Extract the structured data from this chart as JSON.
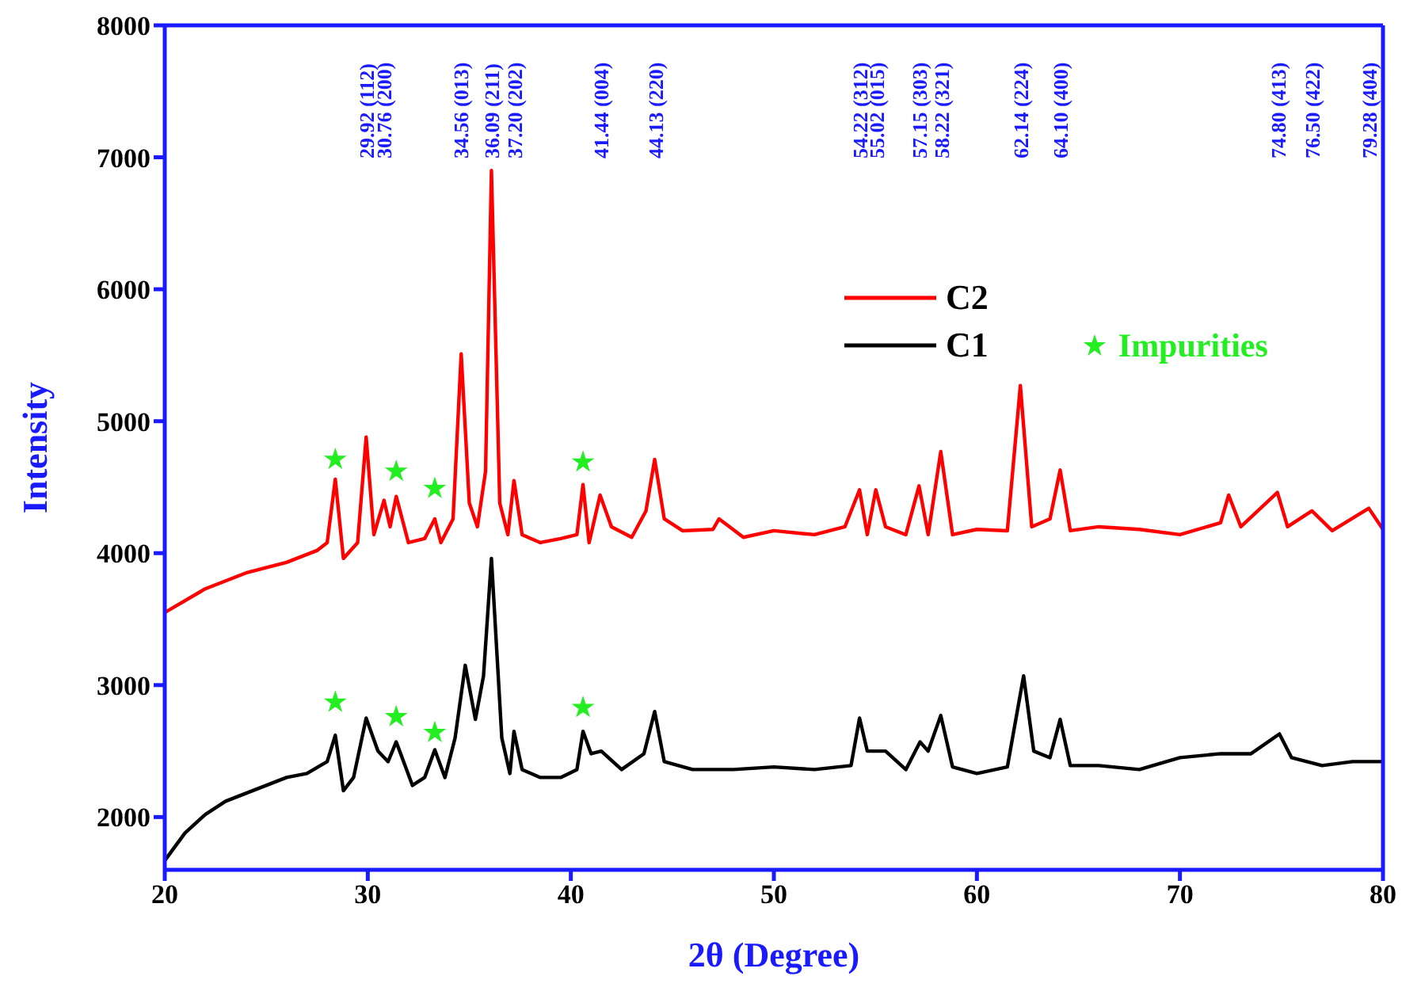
{
  "chart_data": {
    "type": "line",
    "xlabel": "2θ (Degree)",
    "ylabel": "Intensity",
    "xlim": [
      20,
      80
    ],
    "xticks": [
      20,
      30,
      40,
      50,
      60,
      70,
      80
    ],
    "ylim": [
      1600,
      8000
    ],
    "yticks": [
      2000,
      3000,
      4000,
      5000,
      6000,
      7000,
      8000
    ],
    "grid": false,
    "legend": "top right",
    "marker": "none",
    "line_style": "solid",
    "series": [
      {
        "name": "C2",
        "color": "#ff0000",
        "x": [
          20,
          22,
          24,
          26,
          27.5,
          28,
          28.4,
          28.8,
          29.5,
          29.92,
          30.3,
          30.8,
          31.1,
          31.4,
          32,
          32.8,
          33.3,
          33.6,
          34.2,
          34.6,
          35,
          35.4,
          35.8,
          36.09,
          36.5,
          36.9,
          37.2,
          37.6,
          38.5,
          39.5,
          40.3,
          40.6,
          40.9,
          41.44,
          42,
          43,
          43.7,
          44.13,
          44.6,
          45.5,
          47,
          47.3,
          48.5,
          50,
          52,
          53.5,
          54.22,
          54.6,
          55.02,
          55.5,
          56.5,
          57.15,
          57.6,
          58.22,
          58.8,
          60,
          61.5,
          62.14,
          62.7,
          63.6,
          64.1,
          64.6,
          66,
          68,
          70,
          72,
          72.4,
          73,
          74.8,
          75.3,
          76.5,
          77.5,
          79.3,
          80
        ],
        "values": [
          3550,
          3730,
          3850,
          3930,
          4020,
          4080,
          4560,
          3960,
          4080,
          4880,
          4140,
          4400,
          4200,
          4430,
          4080,
          4110,
          4260,
          4080,
          4260,
          5510,
          4380,
          4200,
          4620,
          6900,
          4380,
          4140,
          4550,
          4140,
          4080,
          4110,
          4140,
          4520,
          4080,
          4440,
          4200,
          4120,
          4320,
          4710,
          4260,
          4170,
          4180,
          4260,
          4120,
          4170,
          4140,
          4200,
          4480,
          4140,
          4480,
          4200,
          4140,
          4510,
          4140,
          4770,
          4140,
          4180,
          4170,
          5270,
          4200,
          4260,
          4630,
          4170,
          4200,
          4180,
          4140,
          4230,
          4440,
          4200,
          4460,
          4200,
          4320,
          4170,
          4340,
          4180
        ]
      },
      {
        "name": "C1",
        "color": "#000000",
        "x": [
          20,
          21,
          22,
          23,
          24,
          25,
          26,
          27,
          28,
          28.4,
          28.8,
          29.3,
          29.92,
          30.5,
          31,
          31.4,
          32.2,
          32.8,
          33.3,
          33.8,
          34.3,
          34.8,
          35.3,
          35.7,
          36.09,
          36.6,
          37,
          37.2,
          37.6,
          38.5,
          39.5,
          40.3,
          40.6,
          41,
          41.5,
          42.5,
          43.6,
          44.13,
          44.6,
          46,
          48,
          50,
          52,
          53.8,
          54.22,
          54.6,
          55.5,
          56.5,
          57.2,
          57.6,
          58.22,
          58.8,
          60,
          61.5,
          62.3,
          62.8,
          63.6,
          64.1,
          64.6,
          66,
          68,
          70,
          72,
          73.5,
          74.9,
          75.5,
          77,
          78.5,
          80
        ],
        "values": [
          1670,
          1880,
          2020,
          2120,
          2180,
          2240,
          2300,
          2330,
          2420,
          2620,
          2200,
          2300,
          2750,
          2500,
          2420,
          2570,
          2240,
          2300,
          2510,
          2300,
          2600,
          3150,
          2740,
          3070,
          3960,
          2600,
          2330,
          2650,
          2360,
          2300,
          2300,
          2360,
          2650,
          2480,
          2500,
          2360,
          2480,
          2800,
          2420,
          2360,
          2360,
          2380,
          2360,
          2390,
          2750,
          2500,
          2500,
          2360,
          2570,
          2500,
          2770,
          2380,
          2330,
          2380,
          3070,
          2500,
          2450,
          2740,
          2390,
          2390,
          2360,
          2450,
          2480,
          2480,
          2630,
          2450,
          2390,
          2420,
          2420
        ]
      },
      {
        "name": "Impurities",
        "type": "scatter",
        "marker": "star",
        "color": "#22ee22",
        "x": [
          28.4,
          31.4,
          33.3,
          40.6,
          28.4,
          31.4,
          33.3,
          40.6
        ],
        "values": [
          4710,
          4620,
          4490,
          4690,
          2870,
          2760,
          2640,
          2830
        ]
      }
    ],
    "annotations": [
      "29.92 (112)",
      "30.76 (200)",
      "34.56 (013)",
      "36.09 (211)",
      "37.20 (202)",
      "41.44 (004)",
      "44.13 (220)",
      "54.22 (312)",
      "55.02 (015)",
      "57.15 (303)",
      "58.22 (321)",
      "62.14 (224)",
      "64.10 (400)",
      "74.80 (413)",
      "76.50 (422)",
      "79.28 (404)"
    ]
  }
}
